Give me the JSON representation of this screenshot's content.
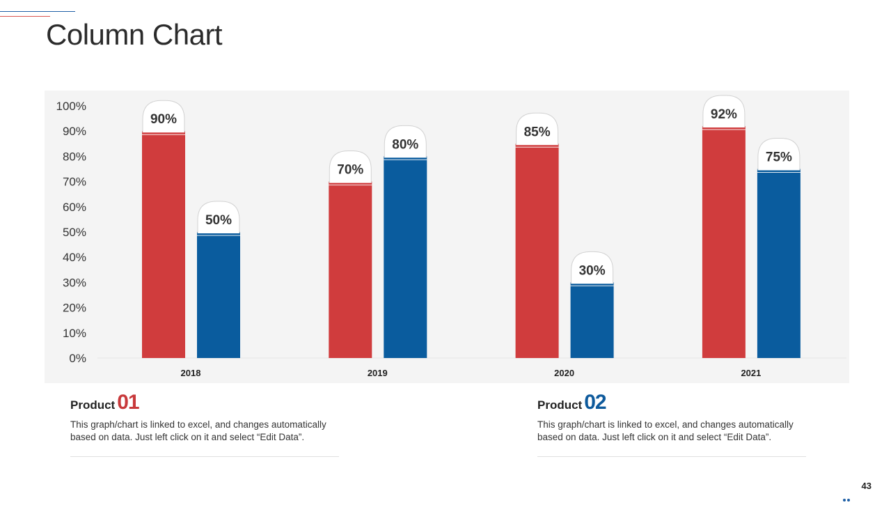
{
  "slide": {
    "title": "Column Chart",
    "page_number": "43"
  },
  "colors": {
    "product01": "#d03c3d",
    "product02": "#0a5c9e"
  },
  "chart_data": {
    "type": "bar",
    "title": "Column Chart",
    "xlabel": "",
    "ylabel": "",
    "categories": [
      "2018",
      "2019",
      "2020",
      "2021"
    ],
    "series": [
      {
        "name": "Product 01",
        "values": [
          90,
          70,
          85,
          92
        ],
        "labels": [
          "90%",
          "70%",
          "85%",
          "92%"
        ]
      },
      {
        "name": "Product 02",
        "values": [
          50,
          80,
          30,
          75
        ],
        "labels": [
          "50%",
          "80%",
          "30%",
          "75%"
        ]
      }
    ],
    "ylim": [
      0,
      100
    ],
    "yticks": [
      "0%",
      "10%",
      "20%",
      "30%",
      "40%",
      "50%",
      "60%",
      "70%",
      "80%",
      "90%",
      "100%"
    ],
    "grid": false,
    "legend": "bottom"
  },
  "legend": {
    "items": [
      {
        "name": "Product",
        "number": "01",
        "description": "This graph/chart is linked to excel, and changes automatically based on data. Just left click on it and select “Edit Data”."
      },
      {
        "name": "Product",
        "number": "02",
        "description": "This graph/chart is linked to excel, and changes automatically based on data. Just left click on it and select “Edit Data”."
      }
    ]
  }
}
